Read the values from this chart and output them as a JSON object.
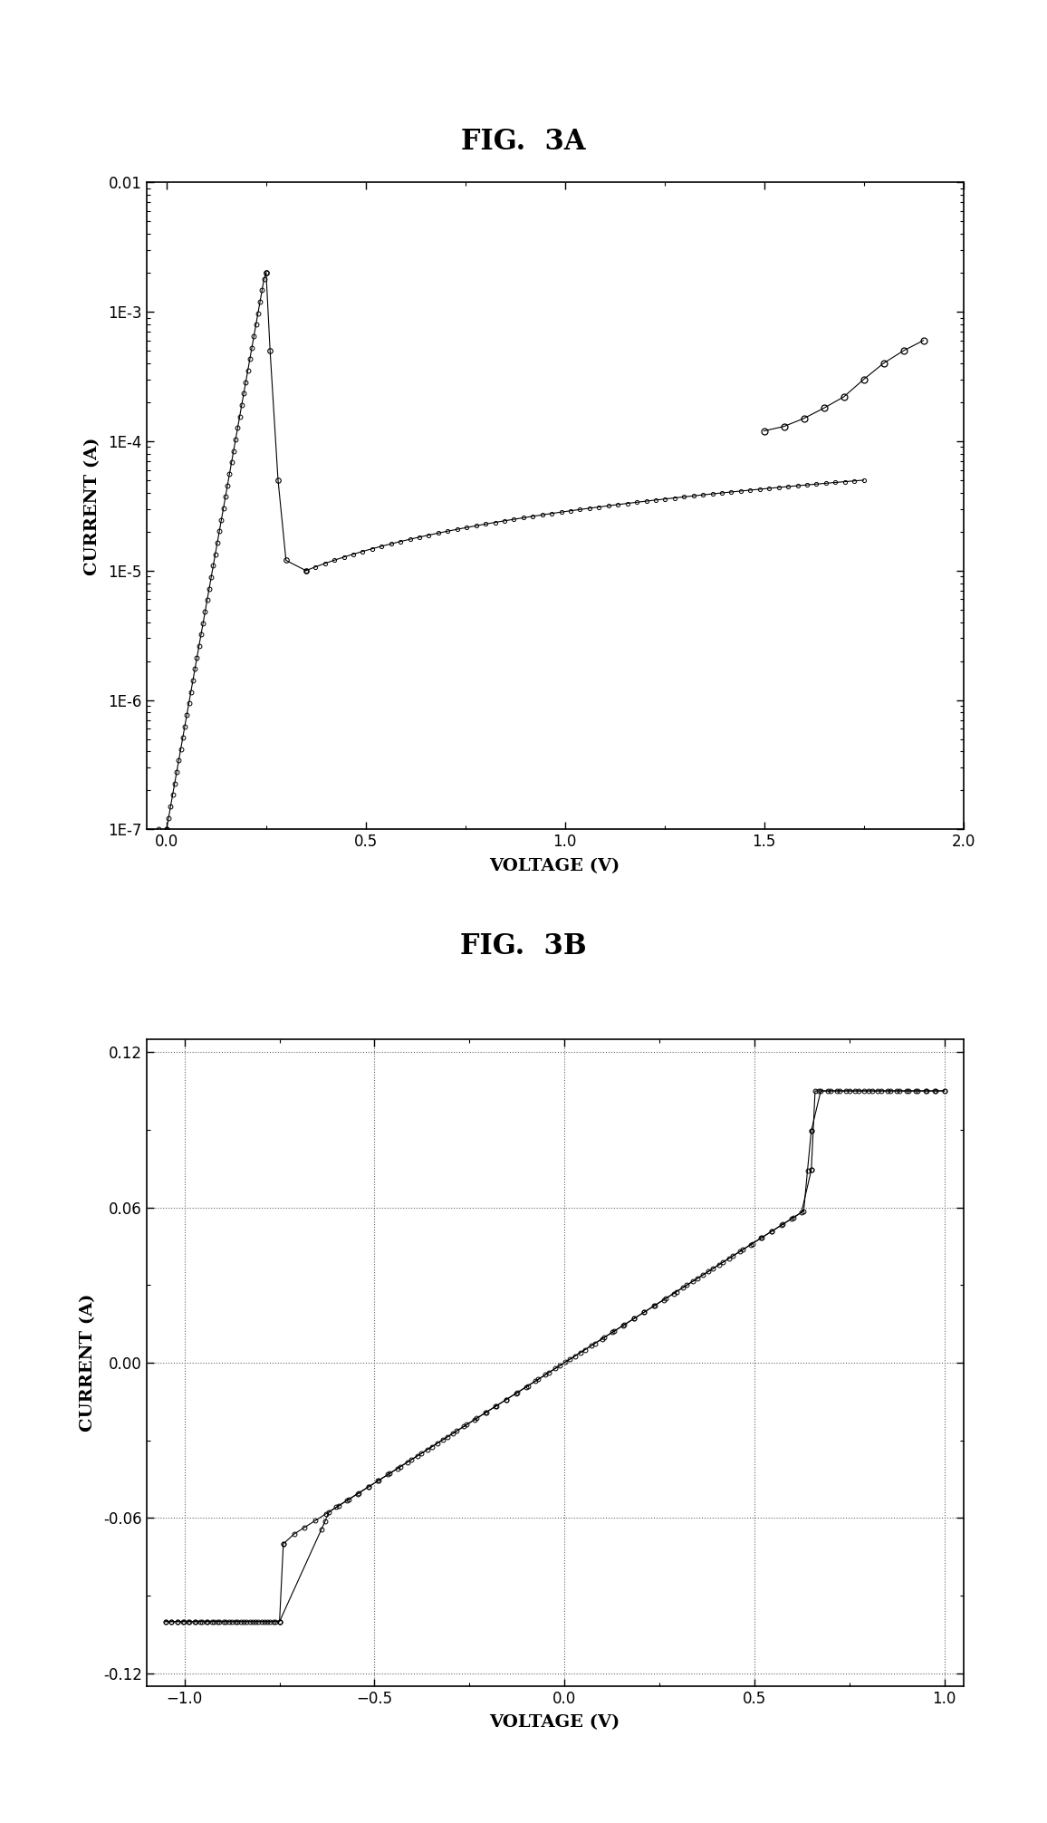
{
  "fig3a_title": "FIG.  3A",
  "fig3b_title": "FIG.  3B",
  "fig3a_xlabel": "VOLTAGE (V)",
  "fig3a_ylabel": "CURRENT (A)",
  "fig3b_xlabel": "VOLTAGE (V)",
  "fig3b_ylabel": "CURRENT (A)",
  "fig3a_xlim": [
    -0.05,
    2.0
  ],
  "fig3a_ylim_log": [
    1e-07,
    0.01
  ],
  "fig3b_xlim": [
    -1.1,
    1.05
  ],
  "fig3b_ylim": [
    -0.125,
    0.125
  ],
  "background_color": "#ffffff",
  "line_color": "#000000"
}
